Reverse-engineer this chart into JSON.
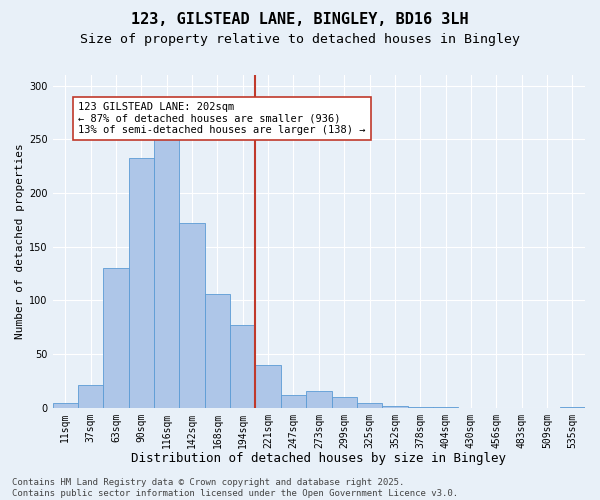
{
  "title": "123, GILSTEAD LANE, BINGLEY, BD16 3LH",
  "subtitle": "Size of property relative to detached houses in Bingley",
  "xlabel": "Distribution of detached houses by size in Bingley",
  "ylabel": "Number of detached properties",
  "bar_labels": [
    "11sqm",
    "37sqm",
    "63sqm",
    "90sqm",
    "116sqm",
    "142sqm",
    "168sqm",
    "194sqm",
    "221sqm",
    "247sqm",
    "273sqm",
    "299sqm",
    "325sqm",
    "352sqm",
    "378sqm",
    "404sqm",
    "430sqm",
    "456sqm",
    "483sqm",
    "509sqm",
    "535sqm"
  ],
  "bar_values": [
    4,
    21,
    130,
    233,
    250,
    172,
    106,
    77,
    40,
    12,
    16,
    10,
    4,
    2,
    1,
    1,
    0,
    0,
    0,
    0,
    1
  ],
  "bar_color": "#aec6e8",
  "bar_edgecolor": "#5b9bd5",
  "background_color": "#e8f0f8",
  "grid_color": "#ffffff",
  "vline_x": 7.5,
  "vline_color": "#c0392b",
  "annotation_line1": "123 GILSTEAD LANE: 202sqm",
  "annotation_line2": "← 87% of detached houses are smaller (936)",
  "annotation_line3": "13% of semi-detached houses are larger (138) →",
  "annotation_box_color": "#ffffff",
  "annotation_box_edgecolor": "#c0392b",
  "ylim": [
    0,
    310
  ],
  "yticks": [
    0,
    50,
    100,
    150,
    200,
    250,
    300
  ],
  "footnote": "Contains HM Land Registry data © Crown copyright and database right 2025.\nContains public sector information licensed under the Open Government Licence v3.0.",
  "title_fontsize": 11,
  "subtitle_fontsize": 9.5,
  "xlabel_fontsize": 9,
  "ylabel_fontsize": 8,
  "tick_fontsize": 7,
  "annotation_fontsize": 7.5,
  "footnote_fontsize": 6.5
}
